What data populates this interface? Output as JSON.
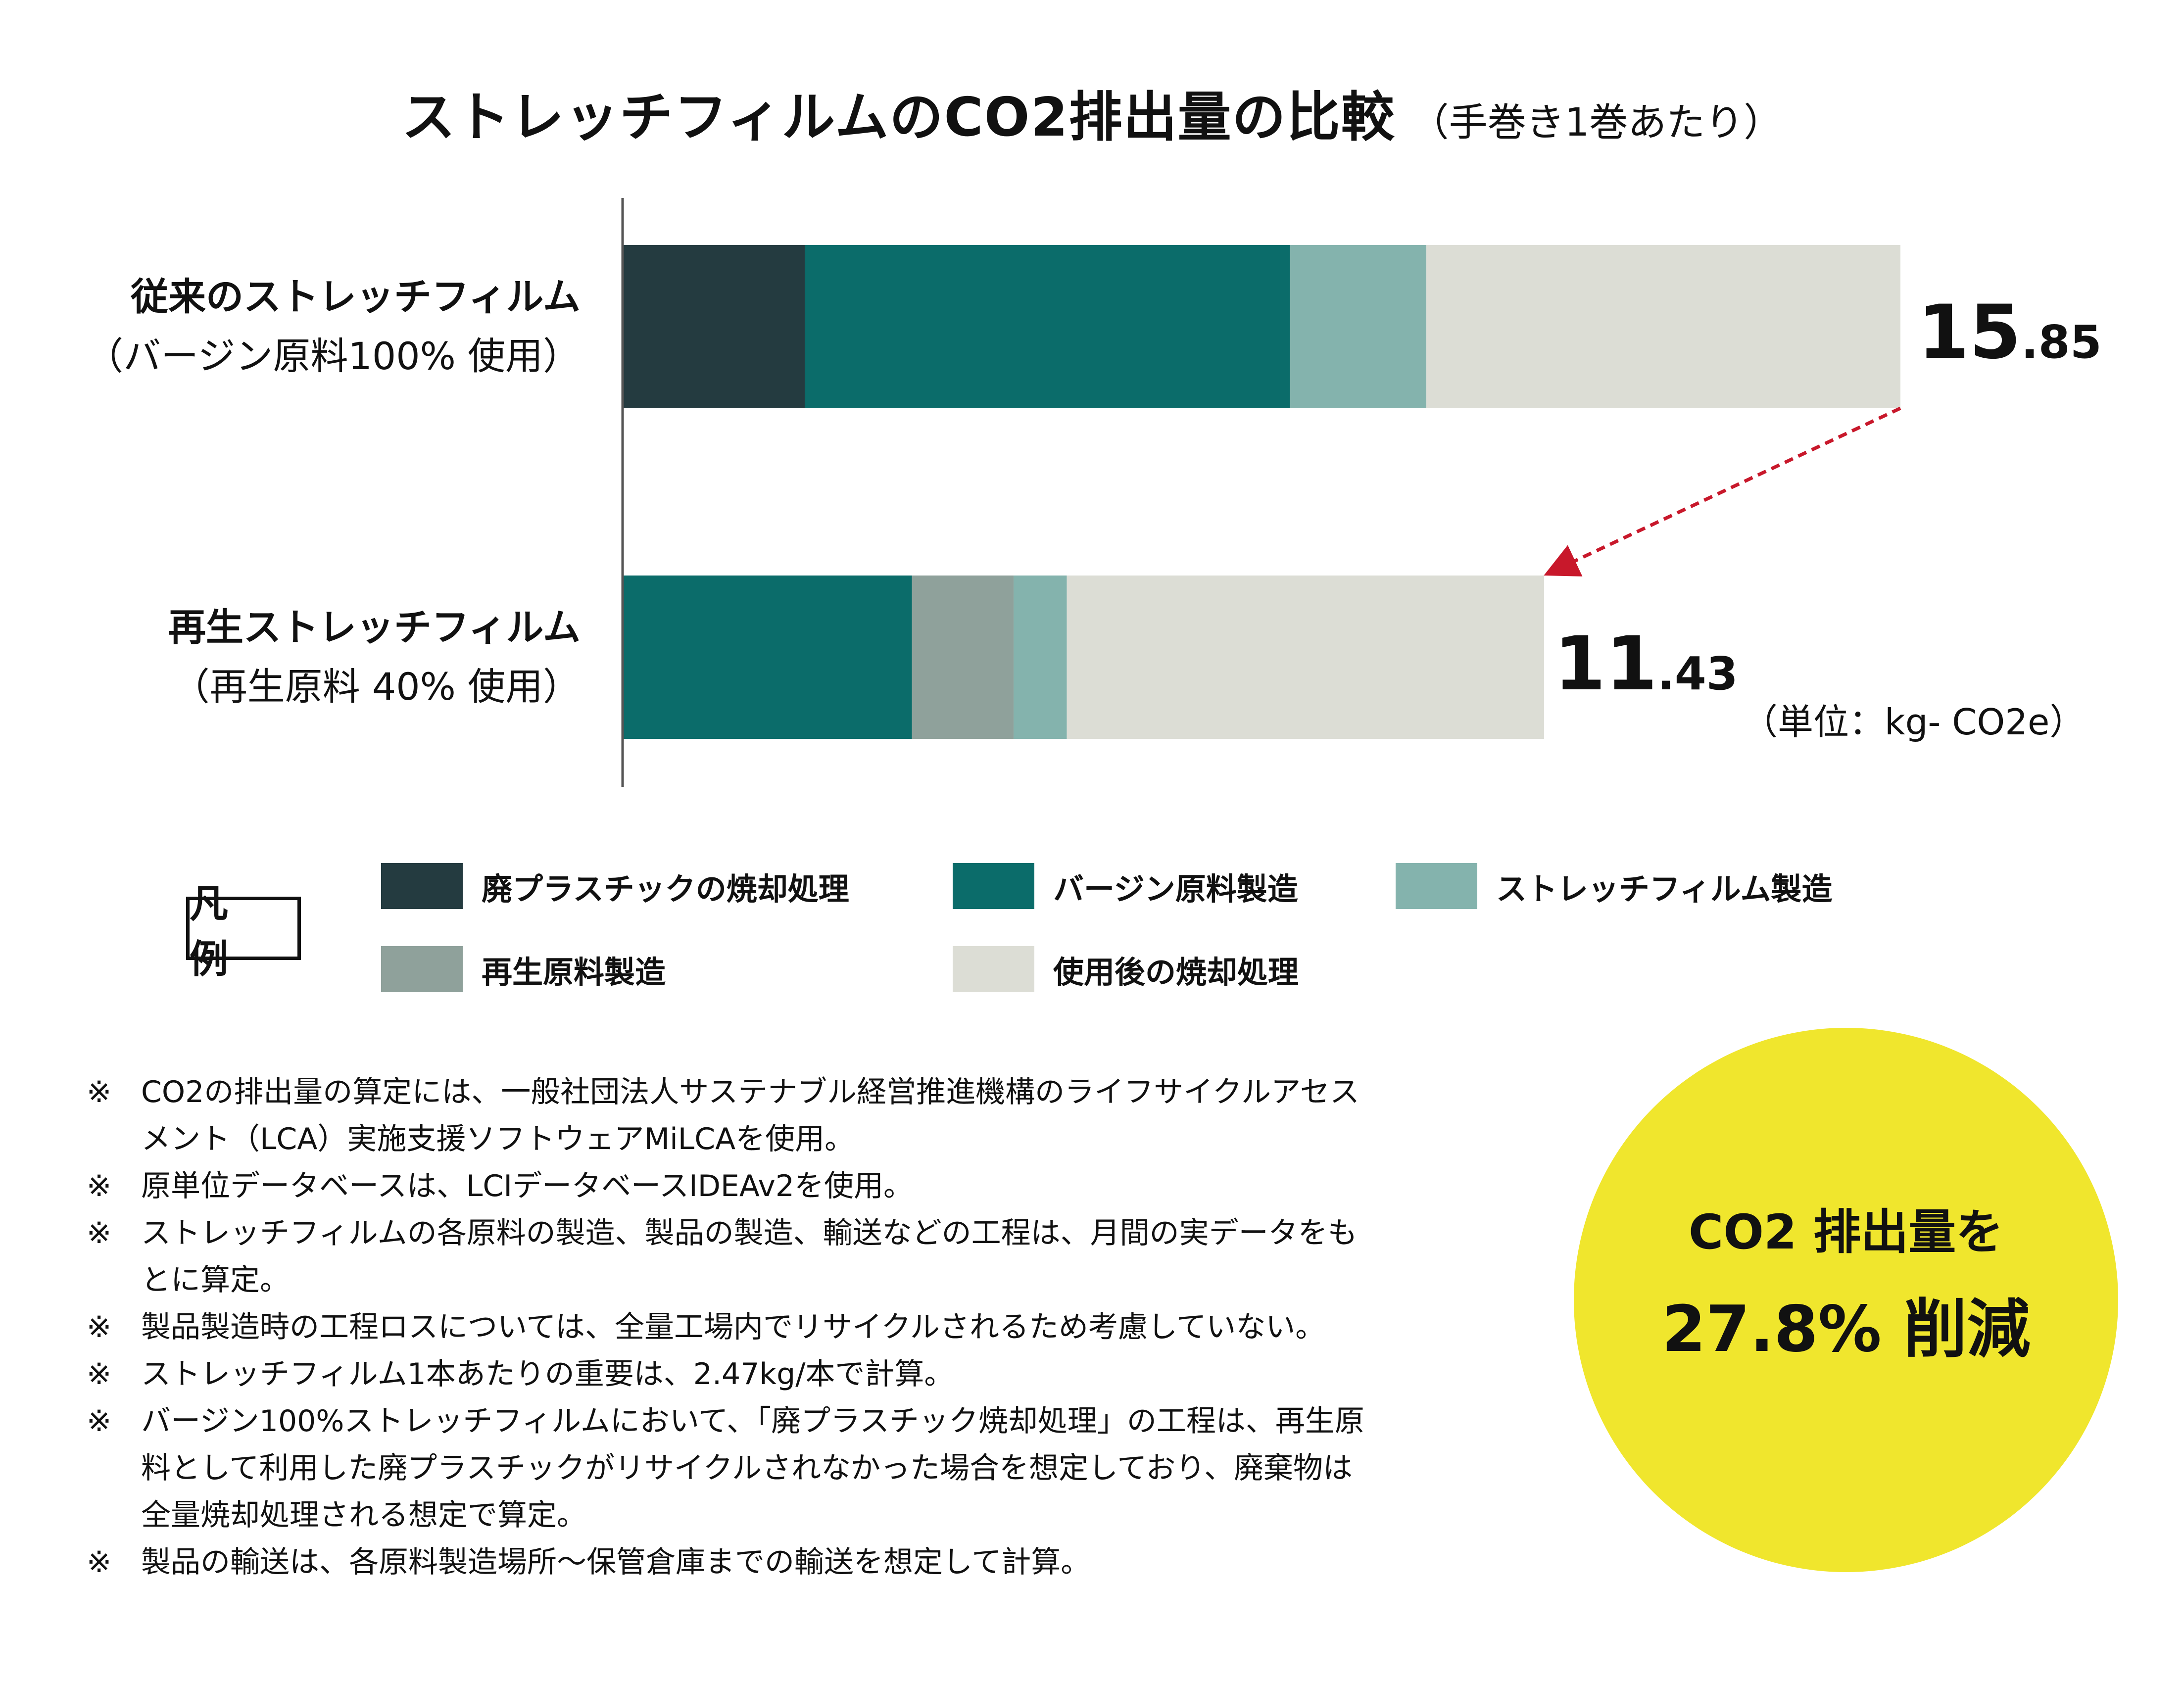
{
  "title": {
    "main": "ストレッチフィルムのCO2排出量の比較",
    "sub": "（手巻き1巻あたり）"
  },
  "colors": {
    "廃プラスチックの焼却処理": "#243b40",
    "バージン原料製造": "#0b6c6a",
    "ストレッチフィルム製造": "#84b3ad",
    "再生原料製造": "#8fa19b",
    "使用後の焼却処理": "#dcddd5",
    "arrow": "#c8182b",
    "highlight": "#f0e62d"
  },
  "chart_data": {
    "type": "bar",
    "orientation": "horizontal",
    "stacked": true,
    "categories": [
      {
        "line1": "従来のストレッチフィルム",
        "line2": "（バージン原料100% 使用）"
      },
      {
        "line1": "再生ストレッチフィルム",
        "line2": "（再生原料 40% 使用）"
      }
    ],
    "series": [
      {
        "name": "廃プラスチックの焼却処理",
        "values": [
          2.26,
          0
        ]
      },
      {
        "name": "バージン原料製造",
        "values": [
          6.02,
          3.59
        ]
      },
      {
        "name": "再生原料製造",
        "values": [
          0,
          1.26
        ]
      },
      {
        "name": "ストレッチフィルム製造",
        "values": [
          1.69,
          0.66
        ]
      },
      {
        "name": "使用後の焼却処理",
        "values": [
          5.88,
          5.92
        ]
      }
    ],
    "totals": [
      {
        "int": "15",
        "dec": ".85"
      },
      {
        "int": "11",
        "dec": ".43"
      }
    ],
    "xlim": [
      0,
      15.85
    ],
    "unit": "（単位：kg- CO2e）",
    "grid": false
  },
  "legend": {
    "title": "凡 例",
    "items": [
      {
        "label": "廃プラスチックの焼却処理"
      },
      {
        "label": "バージン原料製造"
      },
      {
        "label": "ストレッチフィルム製造"
      },
      {
        "label": "再生原料製造"
      },
      {
        "label": "使用後の焼却処理"
      }
    ]
  },
  "notes": [
    {
      "mark": "※",
      "lines": [
        "CO2の排出量の算定には、一般社団法人サステナブル経営推進機構のライフサイクルアセス",
        "メント（LCA）実施支援ソフトウェアMiLCAを使用。"
      ]
    },
    {
      "mark": "※",
      "lines": [
        "原単位データベースは、LCIデータベースIDEAv2を使用。"
      ]
    },
    {
      "mark": "※",
      "lines": [
        "ストレッチフィルムの各原料の製造、製品の製造、輸送などの工程は、月間の実データをも",
        "とに算定。"
      ]
    },
    {
      "mark": "※",
      "lines": [
        "製品製造時の工程ロスについては、全量工場内でリサイクルされるため考慮していない。"
      ]
    },
    {
      "mark": "※",
      "lines": [
        "ストレッチフィルム1本あたりの重要は、2.47kg/本で計算。"
      ]
    },
    {
      "mark": "※",
      "lines": [
        "バージン100%ストレッチフィルムにおいて、「廃プラスチック焼却処理」の工程は、再生原",
        "料として利用した廃プラスチックがリサイクルされなかった場合を想定しており、廃棄物は",
        "全量焼却処理される想定で算定。"
      ]
    },
    {
      "mark": "※",
      "lines": [
        "製品の輸送は、各原料製造場所〜保管倉庫までの輸送を想定して計算。"
      ]
    }
  ],
  "callout": {
    "line1": "CO2 排出量を",
    "line2": "27.8% 削減"
  }
}
